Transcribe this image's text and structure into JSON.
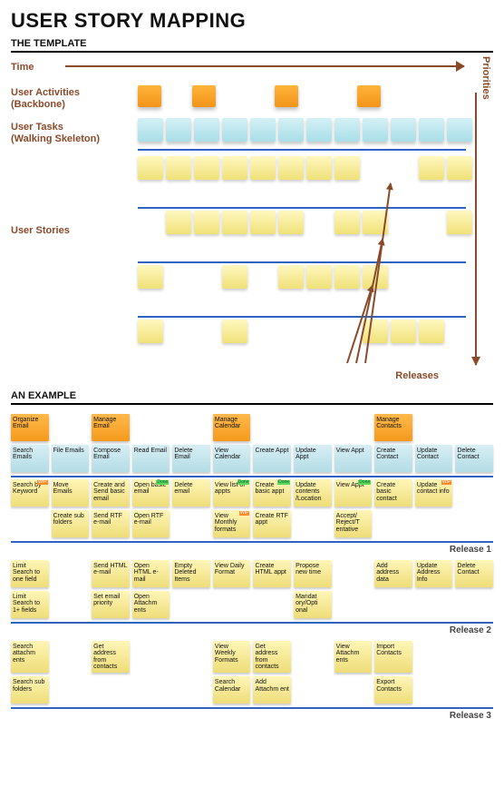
{
  "title": "USER STORY MAPPING",
  "sections": {
    "template": "THE TEMPLATE",
    "example": "AN EXAMPLE"
  },
  "template": {
    "time_label": "Time",
    "priorities_label": "Priorities",
    "rows": {
      "activities": "User Activities\n(Backbone)",
      "tasks": "User Tasks\n(Walking Skeleton)",
      "stories": "User Stories"
    },
    "releases_label": "Releases",
    "colors": {
      "brown": "#8a4a2a",
      "blue_line": "#2f63c0"
    },
    "activity_slots": 12,
    "activity_pos": [
      0,
      2,
      5,
      8
    ],
    "task_count": 12,
    "story_rows": [
      [
        0,
        1,
        2,
        3,
        4,
        5,
        6,
        7,
        10,
        11
      ],
      [
        1,
        2,
        3,
        4,
        5,
        7,
        8,
        11
      ],
      [
        0,
        3,
        5,
        6,
        7,
        8
      ],
      [
        0,
        3,
        8,
        9,
        10
      ]
    ]
  },
  "example": {
    "activities": [
      {
        "col": 1,
        "label": "Organize Email"
      },
      {
        "col": 3,
        "label": "Manage Email"
      },
      {
        "col": 6,
        "label": "Manage Calendar"
      },
      {
        "col": 10,
        "label": "Manage Contacts"
      }
    ],
    "tasks": [
      {
        "col": 1,
        "label": "Search Emails"
      },
      {
        "col": 2,
        "label": "File Emails"
      },
      {
        "col": 3,
        "label": "Compose Email"
      },
      {
        "col": 4,
        "label": "Read Email"
      },
      {
        "col": 5,
        "label": "Delete Email"
      },
      {
        "col": 6,
        "label": "View Calendar"
      },
      {
        "col": 7,
        "label": "Create Appt"
      },
      {
        "col": 8,
        "label": "Update Appt"
      },
      {
        "col": 9,
        "label": "View Appt"
      },
      {
        "col": 10,
        "label": "Create Contact"
      },
      {
        "col": 11,
        "label": "Update Contact"
      },
      {
        "col": 12,
        "label": "Delete Contact"
      }
    ],
    "releases": [
      {
        "label": "Release 1",
        "rows": [
          [
            {
              "col": 1,
              "label": "Search by Keyword",
              "tag": "WIP"
            },
            {
              "col": 2,
              "label": "Move Emails"
            },
            {
              "col": 3,
              "label": "Create and Send basic email"
            },
            {
              "col": 4,
              "label": "Open basic email",
              "tag": "Done"
            },
            {
              "col": 5,
              "label": "Delete email"
            },
            {
              "col": 6,
              "label": "View list of appts",
              "tag": "Done"
            },
            {
              "col": 7,
              "label": "Create basic appt",
              "tag": "Done"
            },
            {
              "col": 8,
              "label": "Update contents /Location"
            },
            {
              "col": 9,
              "label": "View Appt",
              "tag": "Done"
            },
            {
              "col": 10,
              "label": "Create basic contact"
            },
            {
              "col": 11,
              "label": "Update contact info",
              "tag": "WIP"
            }
          ],
          [
            {
              "col": 2,
              "label": "Create sub folders"
            },
            {
              "col": 3,
              "label": "Send RTF e-mail"
            },
            {
              "col": 4,
              "label": "Open RTF e-mail"
            },
            {
              "col": 6,
              "label": "View Monthly formats",
              "tag": "WIP"
            },
            {
              "col": 7,
              "label": "Create RTF appt"
            },
            {
              "col": 9,
              "label": "Accept/ Reject/T entative"
            }
          ]
        ]
      },
      {
        "label": "Release 2",
        "rows": [
          [
            {
              "col": 1,
              "label": "Limit Search to one field"
            },
            {
              "col": 3,
              "label": "Send HTML e-mail"
            },
            {
              "col": 4,
              "label": "Open HTML e-mail"
            },
            {
              "col": 5,
              "label": "Empty Deleted Items"
            },
            {
              "col": 6,
              "label": "View Daily Format"
            },
            {
              "col": 7,
              "label": "Create HTML appt"
            },
            {
              "col": 8,
              "label": "Propose new time"
            },
            {
              "col": 10,
              "label": "Add address data"
            },
            {
              "col": 11,
              "label": "Update Address Info"
            },
            {
              "col": 12,
              "label": "Delete Contact"
            }
          ],
          [
            {
              "col": 1,
              "label": "Limit Search to 1+ fields"
            },
            {
              "col": 3,
              "label": "Set email priority"
            },
            {
              "col": 4,
              "label": "Open Attachm ents"
            },
            {
              "col": 8,
              "label": "Mandat ory/Opti onal"
            }
          ]
        ]
      },
      {
        "label": "Release 3",
        "rows": [
          [
            {
              "col": 1,
              "label": "Search attachm ents"
            },
            {
              "col": 3,
              "label": "Get address from contacts"
            },
            {
              "col": 6,
              "label": "View Weekly Formats"
            },
            {
              "col": 7,
              "label": "Get address from contacts"
            },
            {
              "col": 9,
              "label": "View Attachm ents"
            },
            {
              "col": 10,
              "label": "Import Contacts"
            }
          ],
          [
            {
              "col": 1,
              "label": "Search sub folders"
            },
            {
              "col": 6,
              "label": "Search Calendar"
            },
            {
              "col": 7,
              "label": "Add Attachm ent"
            },
            {
              "col": 10,
              "label": "Export Contacts"
            }
          ]
        ]
      }
    ]
  }
}
